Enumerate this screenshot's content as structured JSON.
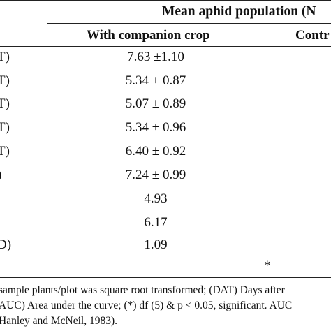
{
  "table": {
    "group_header": "Mean aphid population (N",
    "col_companion": "With companion crop",
    "col_control": "Contr",
    "rows": [
      {
        "stub": "T)",
        "value": "7.63 ±1.10"
      },
      {
        "stub": "T)",
        "value": "5.34 ± 0.87"
      },
      {
        "stub": "T)",
        "value": "5.07 ± 0.89"
      },
      {
        "stub": "T)",
        "value": "5.34 ± 0.96"
      },
      {
        "stub": "T)",
        "value": "6.40 ± 0.92"
      },
      {
        "stub": ")",
        "value": "7.24 ± 0.99"
      },
      {
        "stub": "",
        "value": "4.93"
      },
      {
        "stub": "",
        "value": "6.17"
      },
      {
        "stub": "D)",
        "value": "1.09"
      },
      {
        "stub": "",
        "value": "*"
      }
    ]
  },
  "footnotes": [
    "sample plants/plot was square root transformed; (DAT) Days after",
    "AUC) Area under the curve; (*) df (5) & p < 0.05, significant. AUC",
    "Hanley and McNeil, 1983)."
  ]
}
